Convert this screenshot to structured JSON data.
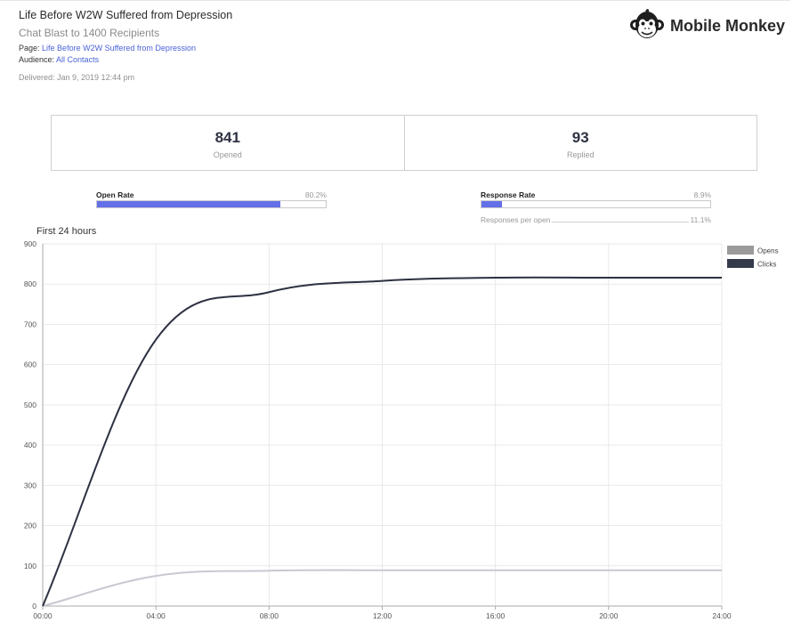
{
  "header": {
    "title": "Life Before W2W Suffered from Depression",
    "subtitle": "Chat Blast to 1400 Recipients",
    "page_label": "Page:",
    "page_value": "Life Before W2W Suffered from Depression",
    "audience_label": "Audience:",
    "audience_value": "All Contacts",
    "delivered": "Delivered: Jan 9, 2019 12:44 pm"
  },
  "brand": {
    "name": "Mobile Monkey",
    "icon": "monkey-logo-icon"
  },
  "stats": [
    {
      "value": "841",
      "label": "Opened"
    },
    {
      "value": "93",
      "label": "Replied"
    }
  ],
  "rates": {
    "open": {
      "label": "Open Rate",
      "value": "80.2%",
      "fraction": 0.802
    },
    "response": {
      "label": "Response Rate",
      "value": "8.9%",
      "fraction": 0.089
    },
    "per_open": {
      "label": "Responses per open",
      "value": "11.1%"
    }
  },
  "colors": {
    "accent": "#6470e8",
    "opens": "#c8c8d2",
    "clicks": "#2d3142",
    "opens_legend": "#9a9a9a",
    "clicks_legend": "#343a4a"
  },
  "chart_title": "First 24 hours",
  "chart_data": {
    "type": "line",
    "title": "First 24 hours",
    "x": [
      "00:00",
      "04:00",
      "08:00",
      "12:00",
      "16:00",
      "20:00",
      "24:00"
    ],
    "ylim": [
      0,
      900
    ],
    "yticks": [
      0,
      100,
      200,
      300,
      400,
      500,
      600,
      700,
      800,
      900
    ],
    "grid": true,
    "legend": "top-right",
    "series": [
      {
        "name": "Opens",
        "values": [
          0,
          75,
          88,
          89,
          89,
          89,
          89
        ]
      },
      {
        "name": "Clicks",
        "values": [
          0,
          662,
          780,
          808,
          816,
          816,
          816
        ]
      }
    ]
  }
}
